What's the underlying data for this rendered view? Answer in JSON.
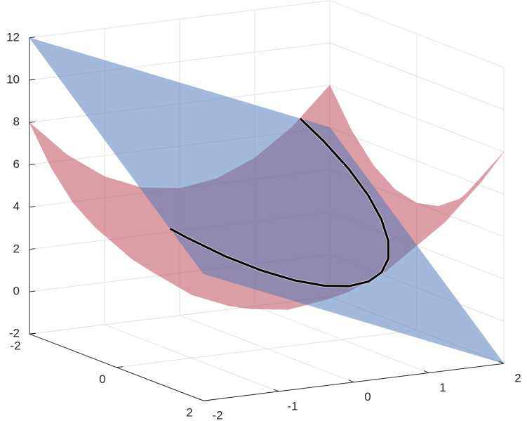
{
  "chart_data": {
    "type": "surface3d",
    "xlim": [
      -2,
      2
    ],
    "ylim": [
      -2,
      2
    ],
    "zlim": [
      -2,
      12
    ],
    "xticks": [
      -2,
      -1,
      0,
      1,
      2
    ],
    "yticks": [
      -2,
      0,
      2
    ],
    "zticks": [
      -2,
      0,
      2,
      4,
      6,
      8,
      10,
      12
    ],
    "grid": true,
    "surfaces": [
      {
        "color": "#b8404f",
        "opacity": 0.5,
        "x": [
          -2,
          -1.5,
          -1,
          -0.5,
          0,
          0.5,
          1,
          1.5,
          2
        ],
        "y": [
          -2,
          -1.5,
          -1,
          -0.5,
          0,
          0.5,
          1,
          1.5,
          2
        ],
        "z": [
          [
            8,
            6.25,
            5,
            4.25,
            4,
            4.25,
            5,
            6.25,
            8
          ],
          [
            6.25,
            4.5,
            3.25,
            2.5,
            2.25,
            2.5,
            3.25,
            4.5,
            6.25
          ],
          [
            5,
            3.25,
            2,
            1.25,
            1,
            1.25,
            2,
            3.25,
            5
          ],
          [
            4.25,
            2.5,
            1.25,
            0.5,
            0.25,
            0.5,
            1.25,
            2.5,
            4.25
          ],
          [
            4,
            2.25,
            1,
            0.25,
            0,
            0.25,
            1,
            2.25,
            4
          ],
          [
            4.25,
            2.5,
            1.25,
            0.5,
            0.25,
            0.5,
            1.25,
            2.5,
            4.25
          ],
          [
            5,
            3.25,
            2,
            1.25,
            1,
            1.25,
            2,
            3.25,
            5
          ],
          [
            6.25,
            4.5,
            3.25,
            2.5,
            2.25,
            2.5,
            3.25,
            4.5,
            6.25
          ],
          [
            8,
            6.25,
            5,
            4.25,
            4,
            4.25,
            5,
            6.25,
            8
          ]
        ]
      },
      {
        "color": "#4a76b8",
        "opacity": 0.5,
        "x": [
          -2,
          2
        ],
        "y": [
          -2,
          2
        ],
        "z": [
          [
            12,
            6
          ],
          [
            4,
            -2
          ]
        ]
      }
    ],
    "curve": {
      "color": "#000000",
      "x": [
        1.608,
        1.724,
        1.802,
        1.802,
        1.724,
        1.572,
        1.349,
        1.061,
        0.719,
        0.333,
        -0.087,
        -0.527,
        -0.973,
        -1.413,
        -1.833,
        -2
      ],
      "y": [
        -2,
        -1.663,
        -1.223,
        -0.777,
        -0.337,
        0.083,
        0.469,
        0.811,
        1.099,
        1.322,
        1.474,
        1.552,
        1.552,
        1.474,
        1.322,
        1.236
      ],
      "z": [
        6.586,
        5.738,
        4.743,
        3.851,
        3.086,
        2.478,
        2.04,
        1.784,
        1.725,
        1.859,
        2.181,
        2.687,
        3.356,
        4.17,
        5.108,
        5.528
      ]
    }
  }
}
